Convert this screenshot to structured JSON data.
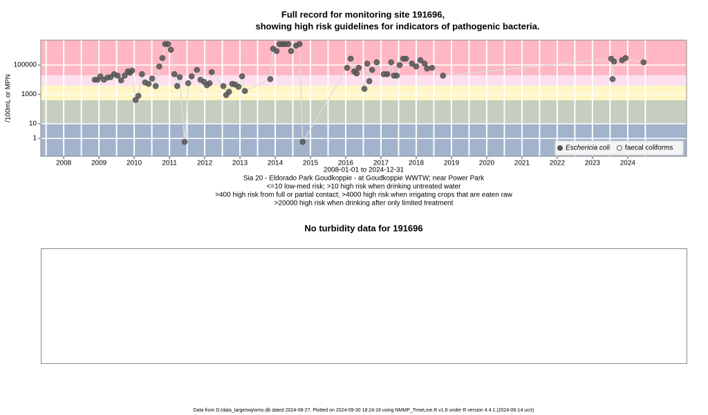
{
  "chart_data": [
    {
      "type": "scatter",
      "title": [
        "Full record for monitoring site 191696,",
        "showing high risk guidelines for indicators of pathogenic bacteria."
      ],
      "y_label": "/100mL or MPN",
      "x_label": "2008-01-01 to 2024-12-31",
      "annotations": [
        "Sia 20 - Eldorado Park Goudkoppie - at Goudkoppie WWTW; near Power Park",
        "<=10 low-med risk; >10 high risk when drinking untreated water",
        ">400 high risk from full or partial contact; >4000 high risk when irrigating crops that are eaten raw",
        ">20000 high risk when drinking after only limited treatment"
      ],
      "log_y": true,
      "xlim": [
        2007.35,
        2025.67
      ],
      "ylim": [
        0.06,
        5000000
      ],
      "xticks": [
        2008,
        2009,
        2010,
        2011,
        2012,
        2013,
        2014,
        2015,
        2016,
        2017,
        2018,
        2019,
        2020,
        2021,
        2022,
        2023,
        2024
      ],
      "yticks": [
        1,
        10,
        1000,
        100000
      ],
      "thresholds": [
        10,
        400,
        4000,
        20000
      ],
      "band_colors": [
        "#a3b3cc",
        "#c5cebf",
        "#fff6c4",
        "#fde0ee",
        "#ffb7c4"
      ],
      "grid": true,
      "legend": "bottom-right",
      "line_color": "#dddddd",
      "series": [
        {
          "name": "Eschericia coli",
          "color": "#555555",
          "filled": true,
          "x": [
            2008.88,
            2008.96,
            2009.04,
            2009.14,
            2009.24,
            2009.33,
            2009.43,
            2009.53,
            2009.63,
            2009.73,
            2009.82,
            2009.88,
            2009.94,
            2010.04,
            2010.12,
            2010.22,
            2010.31,
            2010.41,
            2010.51,
            2010.61,
            2010.71,
            2010.8,
            2010.88,
            2010.96,
            2011.04,
            2011.14,
            2011.22,
            2011.29,
            2011.43,
            2011.53,
            2011.63,
            2011.78,
            2011.88,
            2011.98,
            2012.06,
            2012.14,
            2012.2,
            2012.53,
            2012.61,
            2012.69,
            2012.78,
            2012.86,
            2012.96,
            2013.06,
            2013.14,
            2013.86,
            2013.94,
            2014.04,
            2014.12,
            2014.2,
            2014.27,
            2014.37,
            2014.45,
            2014.59,
            2014.69,
            2014.78,
            2016.04,
            2016.14,
            2016.24,
            2016.31,
            2016.37,
            2016.53,
            2016.61,
            2016.67,
            2016.75,
            2016.88,
            2017.08,
            2017.18,
            2017.29,
            2017.37,
            2017.45,
            2017.53,
            2017.63,
            2017.71,
            2017.88,
            2018.0,
            2018.12,
            2018.24,
            2018.31,
            2018.45,
            2018.76,
            2023.53,
            2023.57,
            2023.61,
            2023.84,
            2023.94,
            2024.45
          ],
          "values": [
            10000,
            10000,
            17000,
            10000,
            14000,
            15000,
            24000,
            19000,
            9000,
            19000,
            37000,
            30000,
            42000,
            420,
            800,
            24000,
            6500,
            5200,
            12000,
            3700,
            80000,
            300000,
            2700000,
            2700000,
            1100000,
            24000,
            3700,
            15000,
            0.58,
            5800,
            17000,
            47000,
            10000,
            7200,
            4200,
            5800,
            33000,
            3700,
            900,
            1500,
            5200,
            4700,
            3300,
            17000,
            1700,
            11000,
            1300000,
            900000,
            2700000,
            2700000,
            2700000,
            2700000,
            900000,
            2100000,
            2700000,
            0.58,
            65000,
            270000,
            37000,
            27000,
            65000,
            2400,
            125000,
            8000,
            47000,
            155000,
            24000,
            24000,
            155000,
            19000,
            19000,
            100000,
            270000,
            270000,
            125000,
            80000,
            215000,
            125000,
            58000,
            65000,
            19000,
            270000,
            11000,
            175000,
            215000,
            300000,
            155000
          ]
        },
        {
          "name": "faecal coliforms",
          "color": "#555555",
          "filled": false,
          "x": [],
          "values": []
        }
      ]
    },
    {
      "type": "empty",
      "title": "No turbidity data for 191696"
    }
  ],
  "footer": "Data from D:/data_large/wq/wms.db dated 2024-08-27. Plotted on 2024-09-30 18:24:18 using NMMP_TimeLine.R v1.8 under R version 4.4.1 (2024-06-14 ucrt)"
}
